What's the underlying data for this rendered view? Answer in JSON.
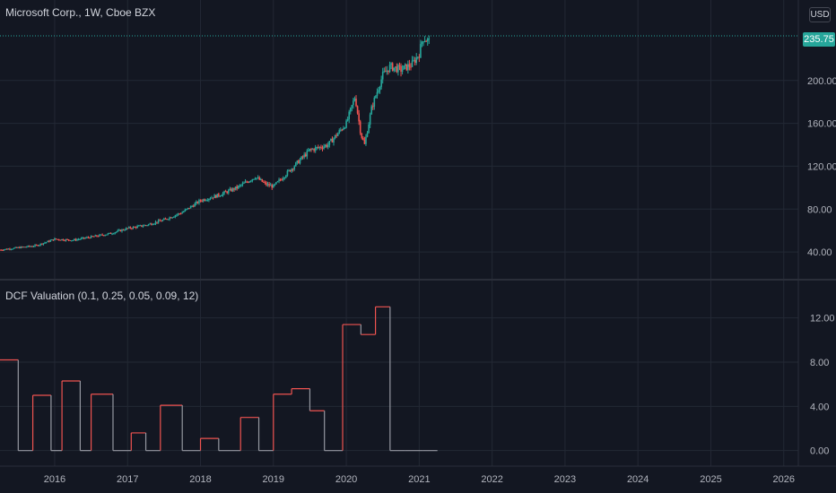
{
  "chart_data": [
    {
      "type": "candlestick",
      "title": "Microsoft Corp., 1W, Cboe BZX",
      "currency": "USD",
      "last_price": "235.75",
      "y_axis_ticks": [
        "40.00",
        "80.00",
        "120.00",
        "160.00",
        "200.00"
      ],
      "ylim": [
        20,
        250
      ],
      "x_axis_ticks": [
        "2016",
        "2017",
        "2018",
        "2019",
        "2020",
        "2021",
        "2022",
        "2023",
        "2024",
        "2025",
        "2026"
      ],
      "xlim": [
        2015.25,
        2026.2
      ],
      "price_path": [
        [
          2015.25,
          42
        ],
        [
          2015.5,
          44
        ],
        [
          2015.75,
          46
        ],
        [
          2016.0,
          52
        ],
        [
          2016.25,
          51
        ],
        [
          2016.5,
          54
        ],
        [
          2016.75,
          57
        ],
        [
          2017.0,
          62
        ],
        [
          2017.25,
          65
        ],
        [
          2017.5,
          70
        ],
        [
          2017.75,
          77
        ],
        [
          2018.0,
          88
        ],
        [
          2018.25,
          93
        ],
        [
          2018.5,
          100
        ],
        [
          2018.75,
          110
        ],
        [
          2018.9,
          103
        ],
        [
          2019.0,
          101
        ],
        [
          2019.25,
          118
        ],
        [
          2019.5,
          135
        ],
        [
          2019.75,
          140
        ],
        [
          2020.0,
          160
        ],
        [
          2020.12,
          185
        ],
        [
          2020.2,
          150
        ],
        [
          2020.25,
          140
        ],
        [
          2020.35,
          175
        ],
        [
          2020.5,
          205
        ],
        [
          2020.6,
          213
        ],
        [
          2020.75,
          210
        ],
        [
          2020.9,
          215
        ],
        [
          2021.0,
          225
        ],
        [
          2021.05,
          240
        ],
        [
          2021.15,
          236
        ]
      ],
      "up_color": "#26a69a",
      "down_color": "#ef5350"
    },
    {
      "type": "line",
      "title": "DCF Valuation (0.1, 0.25, 0.05, 0.09, 12)",
      "y_axis_ticks": [
        "0.00",
        "4.00",
        "8.00",
        "12.00"
      ],
      "ylim": [
        -1,
        14
      ],
      "x": [
        2015.25,
        2015.5,
        2015.7,
        2015.95,
        2016.1,
        2016.35,
        2016.5,
        2016.8,
        2017.05,
        2017.25,
        2017.45,
        2017.75,
        2018.0,
        2018.25,
        2018.55,
        2018.8,
        2019.0,
        2019.25,
        2019.5,
        2019.7,
        2019.95,
        2020.2,
        2020.4,
        2020.6,
        2020.8,
        2021.05,
        2021.25
      ],
      "values": [
        8.2,
        0,
        5.0,
        0,
        6.3,
        0,
        5.1,
        0,
        1.6,
        0,
        4.1,
        0,
        1.1,
        0,
        3.0,
        0,
        5.1,
        5.6,
        3.6,
        0,
        11.4,
        10.5,
        13.0,
        0,
        0,
        0,
        0
      ],
      "line_color": "#ef5350",
      "zero_color": "#9598a1"
    }
  ]
}
